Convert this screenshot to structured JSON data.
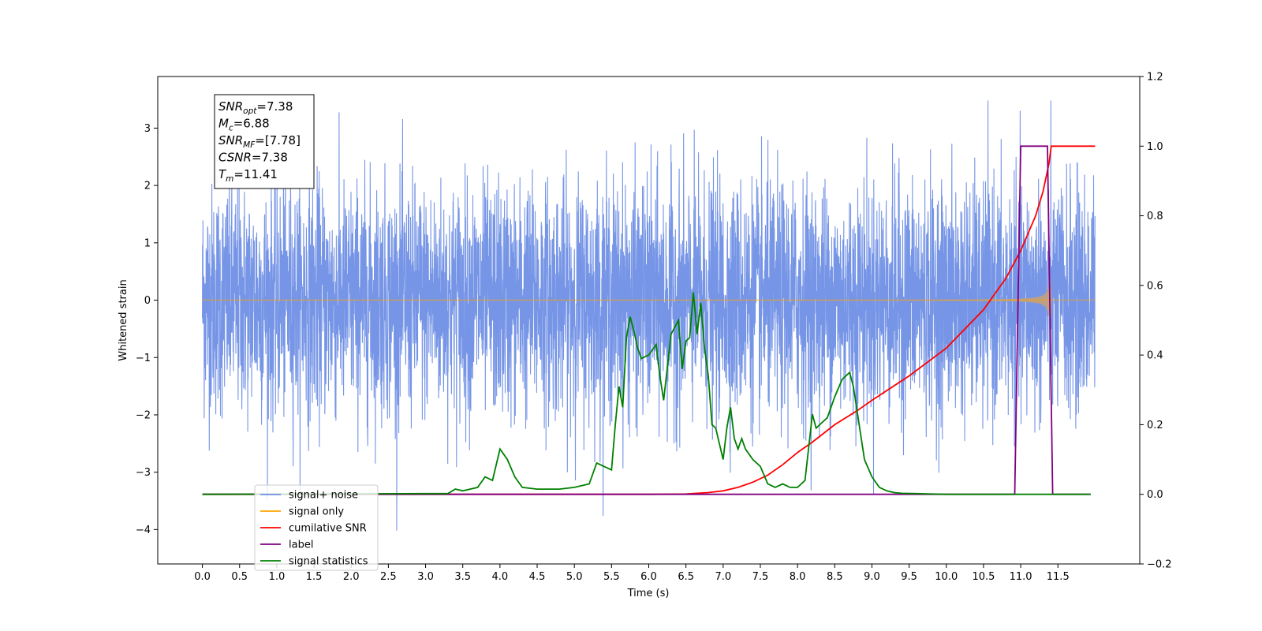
{
  "chart_data": {
    "type": "line",
    "xlabel": "Time (s)",
    "ylabel_left": "Whitened strain",
    "ylabel_right": "",
    "xlim": [
      -0.6,
      12.6
    ],
    "ylim_left": [
      -4.6,
      3.9
    ],
    "ylim_right": [
      -0.2,
      1.2
    ],
    "x_ticks": [
      "0.0",
      "0.5",
      "1.0",
      "1.5",
      "2.0",
      "2.5",
      "3.0",
      "3.5",
      "4.0",
      "4.5",
      "5.0",
      "5.5",
      "6.0",
      "6.5",
      "7.0",
      "7.5",
      "8.0",
      "8.5",
      "9.0",
      "9.5",
      "10.0",
      "10.5",
      "11.0",
      "11.5"
    ],
    "y_ticks_left": [
      "−4",
      "−3",
      "−2",
      "−1",
      "0",
      "1",
      "2",
      "3"
    ],
    "y_ticks_right": [
      "−0.2",
      "0.0",
      "0.2",
      "0.4",
      "0.6",
      "0.8",
      "1.0",
      "1.2"
    ],
    "grid": false,
    "legend_placement": "lower-left",
    "annotation": {
      "lines": [
        {
          "base": "SNR",
          "sub": "opt",
          "rest": "=7.38"
        },
        {
          "base": "M",
          "sub": "c",
          "rest": "=6.88"
        },
        {
          "base": "SNR",
          "sub": "MF",
          "rest": "=[7.78]"
        },
        {
          "base": "CSNR",
          "sub": "",
          "rest": "=7.38"
        },
        {
          "base": "T",
          "sub": "m",
          "rest": "=11.41"
        }
      ]
    },
    "series": [
      {
        "name": "signal+ noise",
        "axis": "left",
        "color": "#6f8fe5",
        "description_kind": "noise",
        "x_range": [
          0.0,
          12.0
        ],
        "mean": 0.0,
        "std": 1.0,
        "max": 3.48,
        "min": -4.1
      },
      {
        "name": "signal only",
        "axis": "left",
        "color": "#ffa500",
        "description_kind": "chirp",
        "x_range": [
          0.0,
          12.0
        ],
        "merger_time": 11.41,
        "peak_amplitude": 0.6
      },
      {
        "name": "cumilative SNR",
        "axis": "right",
        "color": "#ff0000",
        "x": [
          0.0,
          6.0,
          6.5,
          6.8,
          7.0,
          7.2,
          7.4,
          7.6,
          7.8,
          8.0,
          8.2,
          8.5,
          8.8,
          9.0,
          9.5,
          10.0,
          10.5,
          10.8,
          11.0,
          11.2,
          11.3,
          11.38,
          11.41,
          11.45,
          12.0
        ],
        "y": [
          0.0,
          0.0,
          0.001,
          0.005,
          0.01,
          0.02,
          0.035,
          0.055,
          0.085,
          0.12,
          0.15,
          0.2,
          0.24,
          0.27,
          0.34,
          0.42,
          0.53,
          0.62,
          0.7,
          0.8,
          0.87,
          0.95,
          1.0,
          1.0,
          1.0
        ]
      },
      {
        "name": "label",
        "axis": "right",
        "color": "#800080",
        "x": [
          0.0,
          10.92,
          11.0,
          11.36,
          11.43,
          11.94
        ],
        "y": [
          0.0,
          0.0,
          1.0,
          1.0,
          0.0,
          0.0
        ]
      },
      {
        "name": "signal statistics",
        "axis": "right",
        "color": "#008000",
        "x": [
          0.0,
          3.0,
          3.3,
          3.4,
          3.5,
          3.6,
          3.7,
          3.8,
          3.9,
          4.0,
          4.1,
          4.2,
          4.3,
          4.5,
          4.8,
          5.0,
          5.2,
          5.3,
          5.4,
          5.5,
          5.55,
          5.6,
          5.65,
          5.7,
          5.75,
          5.8,
          5.85,
          5.9,
          6.0,
          6.1,
          6.15,
          6.2,
          6.3,
          6.4,
          6.45,
          6.5,
          6.55,
          6.6,
          6.65,
          6.7,
          6.75,
          6.8,
          6.85,
          6.9,
          7.0,
          7.05,
          7.1,
          7.15,
          7.2,
          7.25,
          7.3,
          7.4,
          7.5,
          7.6,
          7.7,
          7.8,
          7.9,
          8.0,
          8.1,
          8.2,
          8.25,
          8.3,
          8.35,
          8.4,
          8.5,
          8.6,
          8.7,
          8.75,
          8.8,
          8.9,
          9.0,
          9.1,
          9.2,
          9.3,
          9.4,
          9.6,
          9.8,
          10.0,
          10.5,
          11.0,
          11.94
        ],
        "y": [
          0.0,
          0.002,
          0.002,
          0.015,
          0.01,
          0.015,
          0.02,
          0.05,
          0.04,
          0.13,
          0.1,
          0.05,
          0.02,
          0.015,
          0.015,
          0.02,
          0.03,
          0.09,
          0.08,
          0.07,
          0.2,
          0.31,
          0.25,
          0.45,
          0.51,
          0.47,
          0.42,
          0.39,
          0.4,
          0.43,
          0.34,
          0.27,
          0.46,
          0.5,
          0.36,
          0.44,
          0.45,
          0.58,
          0.46,
          0.55,
          0.42,
          0.34,
          0.2,
          0.19,
          0.1,
          0.19,
          0.25,
          0.16,
          0.13,
          0.16,
          0.13,
          0.1,
          0.08,
          0.03,
          0.02,
          0.03,
          0.02,
          0.02,
          0.04,
          0.23,
          0.19,
          0.2,
          0.21,
          0.22,
          0.28,
          0.33,
          0.35,
          0.31,
          0.24,
          0.1,
          0.05,
          0.02,
          0.01,
          0.005,
          0.003,
          0.002,
          0.001,
          0.0,
          0.0,
          0.0,
          0.0
        ]
      }
    ]
  },
  "legend": {
    "items": [
      {
        "label": "signal+ noise",
        "color": "#6f8fe5"
      },
      {
        "label": "signal only",
        "color": "#ffa500"
      },
      {
        "label": "cumilative SNR",
        "color": "#ff0000"
      },
      {
        "label": "label",
        "color": "#800080"
      },
      {
        "label": "signal statistics",
        "color": "#008000"
      }
    ]
  }
}
